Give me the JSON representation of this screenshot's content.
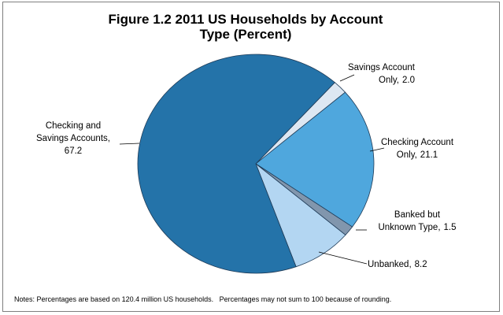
{
  "chart_data": {
    "type": "pie",
    "title": "Figure 1.2 2011 US Households by Account Type (Percent)",
    "categories": [
      "Savings Account Only",
      "Checking Account Only",
      "Banked but Unknown Type",
      "Unbanked",
      "Checking and Savings Accounts"
    ],
    "values": [
      2.0,
      21.1,
      1.5,
      8.2,
      67.2
    ],
    "value_labels": [
      "2.0",
      "21.1",
      "1.5",
      "8.2",
      "67.2"
    ],
    "colors": [
      "#dde7f2",
      "#4fa7dd",
      "#8196ad",
      "#b3d6f2",
      "#2473a9"
    ],
    "notes": "Notes: Percentages are based on 120.4 million US households.   Percentages may not sum to 100 because of rounding."
  }
}
